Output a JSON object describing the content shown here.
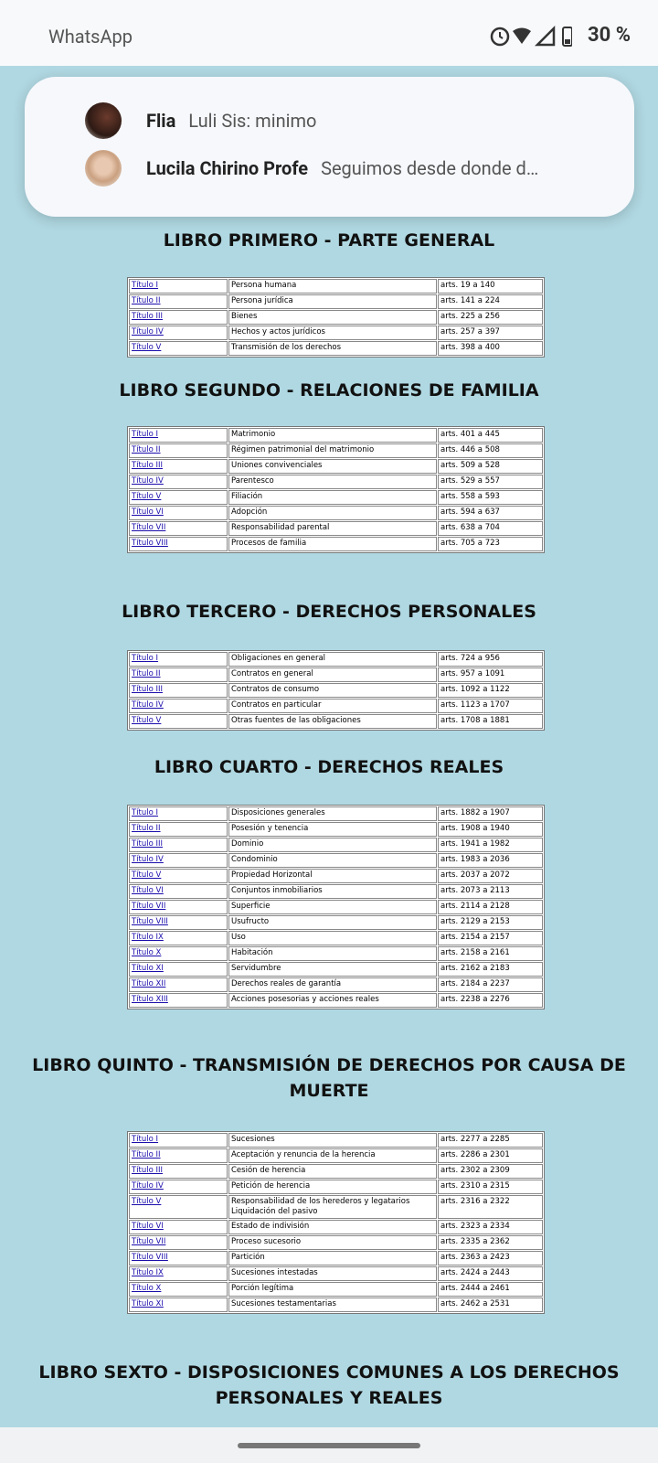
{
  "status_bar": {
    "app": "WhatsApp",
    "battery": "30 %"
  },
  "notifications": [
    {
      "name": "Flia",
      "message": "Luli Sis: minimo"
    },
    {
      "name": "Lucila Chirino Profe",
      "message": "Seguimos desde donde d…"
    }
  ],
  "sections": [
    {
      "heading": "LIBRO PRIMERO - PARTE GENERAL",
      "rows": [
        [
          "Título I",
          "Persona humana",
          "arts. 19 a 140"
        ],
        [
          "Título II",
          "Persona jurídica",
          "arts. 141 a 224"
        ],
        [
          "Título III",
          "Bienes",
          "arts. 225 a 256"
        ],
        [
          "Título IV",
          "Hechos y actos jurídicos",
          "arts. 257 a 397"
        ],
        [
          "Título V",
          "Transmisión de los derechos",
          "arts. 398 a 400"
        ]
      ]
    },
    {
      "heading": "LIBRO SEGUNDO - RELACIONES DE FAMILIA",
      "rows": [
        [
          "Título I",
          "Matrimonio",
          "arts. 401 a  445"
        ],
        [
          "Título II",
          "Régimen patrimonial del matrimonio",
          "arts. 446 a 508"
        ],
        [
          "Título III",
          "Uniones convivenciales",
          "arts. 509 a 528"
        ],
        [
          "Título IV",
          "Parentesco",
          "arts. 529 a 557"
        ],
        [
          "Título V",
          "Filiación",
          "arts. 558 a 593"
        ],
        [
          "Título VI",
          "Adopción",
          "arts. 594 a 637"
        ],
        [
          "Título VII",
          "Responsabilidad parental",
          "arts. 638 a 704"
        ],
        [
          "Título VIII",
          "Procesos de familia",
          "arts. 705 a 723"
        ]
      ]
    },
    {
      "heading": "LIBRO TERCERO - DERECHOS PERSONALES",
      "rows": [
        [
          "Título I",
          "Obligaciones en general",
          "arts. 724 a 956"
        ],
        [
          "Título II",
          "Contratos en general",
          "arts. 957 a 1091"
        ],
        [
          "Título III",
          "Contratos de consumo",
          "arts. 1092 a 1122"
        ],
        [
          "Título IV",
          "Contratos en particular",
          "arts. 1123 a 1707"
        ],
        [
          "Título V",
          "Otras fuentes de las obligaciones",
          "arts. 1708 a 1881"
        ]
      ]
    },
    {
      "heading": "LIBRO CUARTO - DERECHOS REALES",
      "rows": [
        [
          "Título I",
          "Disposiciones generales",
          "arts. 1882 a 1907"
        ],
        [
          "Título II",
          "Posesión y tenencia",
          "arts. 1908 a 1940"
        ],
        [
          "Título III",
          "Dominio",
          "arts. 1941 a 1982"
        ],
        [
          "Título IV",
          "Condominio",
          "arts. 1983 a 2036"
        ],
        [
          "Título V",
          "Propiedad Horizontal",
          "arts. 2037 a 2072"
        ],
        [
          "Título VI",
          "Conjuntos inmobiliarios",
          "arts. 2073 a 2113"
        ],
        [
          "Título VII",
          "Superficie",
          "arts. 2114 a 2128"
        ],
        [
          "Título VIII",
          "Usufructo",
          "arts. 2129 a 2153"
        ],
        [
          "Título IX",
          "Uso",
          "arts. 2154 a 2157"
        ],
        [
          "Título X",
          "Habitación",
          "arts. 2158 a 2161"
        ],
        [
          "Título XI",
          "Servidumbre",
          "arts. 2162 a 2183"
        ],
        [
          "Título XII",
          "Derechos reales de garantía",
          "arts. 2184 a 2237"
        ],
        [
          "Título XIII",
          "Acciones posesorias y acciones reales",
          "arts. 2238 a 2276"
        ]
      ]
    },
    {
      "heading": "LIBRO QUINTO - TRANSMISIÓN DE DERECHOS POR CAUSA DE MUERTE",
      "rows": [
        [
          "Título I",
          "Sucesiones",
          "arts. 2277 a 2285"
        ],
        [
          "Título II",
          "Aceptación y renuncia de la herencia",
          "arts. 2286 a 2301"
        ],
        [
          "Título III",
          "Cesión de herencia",
          "arts. 2302 a 2309"
        ],
        [
          "Título IV",
          "Petición de herencia",
          "arts. 2310 a 2315"
        ],
        [
          "Título V",
          "Responsabilidad de los herederos y legatarios\nLiquidación del pasivo",
          "arts. 2316 a 2322"
        ],
        [
          "Título VI",
          "Estado de indivisión",
          "arts. 2323 a 2334"
        ],
        [
          "Título VII",
          "Proceso sucesorio",
          "arts. 2335 a 2362"
        ],
        [
          "Título VIII",
          "Partición",
          "arts. 2363 a 2423"
        ],
        [
          "Título IX",
          "Sucesiones intestadas",
          "arts. 2424 a 2443"
        ],
        [
          "Título X",
          "Porción legítima",
          "arts. 2444 a 2461"
        ],
        [
          "Título XI",
          "Sucesiones testamentarias",
          "arts. 2462 a 2531"
        ]
      ]
    },
    {
      "heading": "LIBRO SEXTO - DISPOSICIONES COMUNES A LOS DERECHOS PERSONALES Y REALES",
      "rows": []
    }
  ]
}
